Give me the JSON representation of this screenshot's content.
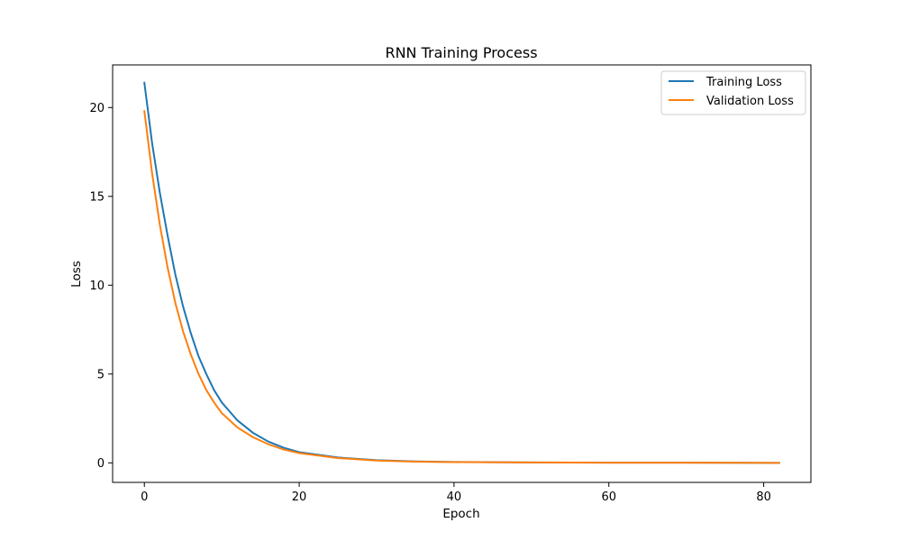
{
  "chart_data": {
    "type": "line",
    "title": "RNN Training Process",
    "xlabel": "Epoch",
    "ylabel": "Loss",
    "xlim": [
      -4.1,
      86.1
    ],
    "ylim": [
      -1.1,
      22.4
    ],
    "x_ticks": [
      0,
      20,
      40,
      60,
      80
    ],
    "y_ticks": [
      0,
      5,
      10,
      15,
      20
    ],
    "grid": false,
    "legend_position": "top-right",
    "series": [
      {
        "name": "Training Loss",
        "color": "#1f77b4",
        "x": [
          0,
          1,
          2,
          3,
          4,
          5,
          6,
          7,
          8,
          9,
          10,
          12,
          14,
          16,
          18,
          20,
          25,
          30,
          35,
          40,
          50,
          60,
          70,
          82
        ],
        "values": [
          21.4,
          18.0,
          15.2,
          12.8,
          10.6,
          8.8,
          7.3,
          6.0,
          5.0,
          4.1,
          3.4,
          2.4,
          1.7,
          1.2,
          0.85,
          0.6,
          0.3,
          0.15,
          0.08,
          0.05,
          0.02,
          0.01,
          0.01,
          0.0
        ]
      },
      {
        "name": "Validation Loss",
        "color": "#ff7f0e",
        "x": [
          0,
          1,
          2,
          3,
          4,
          5,
          6,
          7,
          8,
          9,
          10,
          12,
          14,
          16,
          18,
          20,
          25,
          30,
          35,
          40,
          50,
          60,
          70,
          82
        ],
        "values": [
          19.8,
          16.3,
          13.4,
          11.0,
          9.0,
          7.4,
          6.1,
          5.0,
          4.1,
          3.4,
          2.8,
          2.0,
          1.45,
          1.05,
          0.75,
          0.55,
          0.27,
          0.13,
          0.07,
          0.04,
          0.02,
          0.01,
          0.01,
          0.0
        ]
      }
    ]
  }
}
